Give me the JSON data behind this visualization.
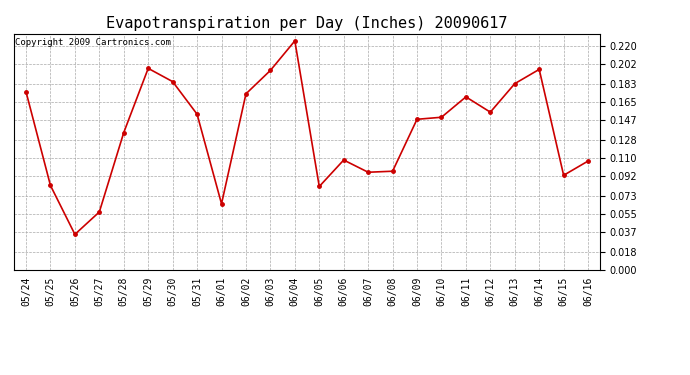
{
  "title": "Evapotranspiration per Day (Inches) 20090617",
  "copyright_text": "Copyright 2009 Cartronics.com",
  "x_labels": [
    "05/24",
    "05/25",
    "05/26",
    "05/27",
    "05/28",
    "05/29",
    "05/30",
    "05/31",
    "06/01",
    "06/02",
    "06/03",
    "06/04",
    "06/05",
    "06/06",
    "06/07",
    "06/08",
    "06/09",
    "06/10",
    "06/11",
    "06/12",
    "06/13",
    "06/14",
    "06/15",
    "06/16"
  ],
  "y_values": [
    0.175,
    0.083,
    0.035,
    0.057,
    0.135,
    0.198,
    0.185,
    0.153,
    0.065,
    0.173,
    0.196,
    0.225,
    0.082,
    0.108,
    0.096,
    0.097,
    0.148,
    0.15,
    0.17,
    0.155,
    0.183,
    0.197,
    0.093,
    0.107
  ],
  "line_color": "#cc0000",
  "marker": "o",
  "marker_size": 2.5,
  "line_width": 1.2,
  "ylim": [
    0.0,
    0.232
  ],
  "yticks": [
    0.0,
    0.018,
    0.037,
    0.055,
    0.073,
    0.092,
    0.11,
    0.128,
    0.147,
    0.165,
    0.183,
    0.202,
    0.22
  ],
  "bg_color": "#ffffff",
  "plot_bg_color": "#ffffff",
  "grid_color": "#aaaaaa",
  "title_fontsize": 11,
  "tick_fontsize": 7,
  "copyright_fontsize": 6.5
}
